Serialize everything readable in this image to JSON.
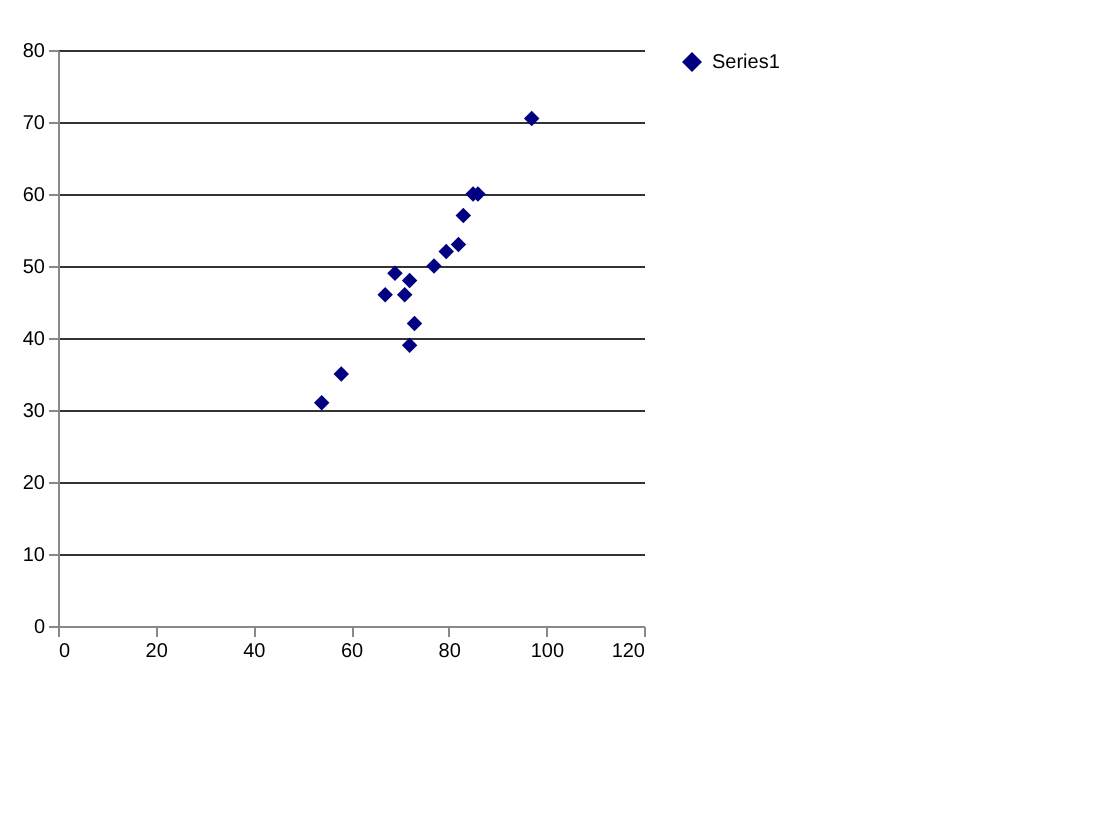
{
  "chart_data": {
    "type": "scatter",
    "x": [
      54,
      58,
      67,
      69,
      71,
      72,
      72,
      73,
      77,
      79.5,
      82,
      83,
      85,
      86,
      97
    ],
    "series": [
      {
        "name": "Series1",
        "color": "#000080",
        "values": [
          31,
          35,
          46,
          49,
          46,
          48,
          39,
          42,
          50,
          52,
          53,
          57,
          60,
          60,
          70.5
        ]
      }
    ],
    "xlim": [
      0,
      120
    ],
    "xticks": [
      0,
      20,
      40,
      60,
      80,
      100,
      120
    ],
    "ylim": [
      0,
      80
    ],
    "yticks": [
      0,
      10,
      20,
      30,
      40,
      50,
      60,
      70,
      80
    ],
    "grid": "y",
    "legend": "right",
    "marker": "diamond"
  }
}
